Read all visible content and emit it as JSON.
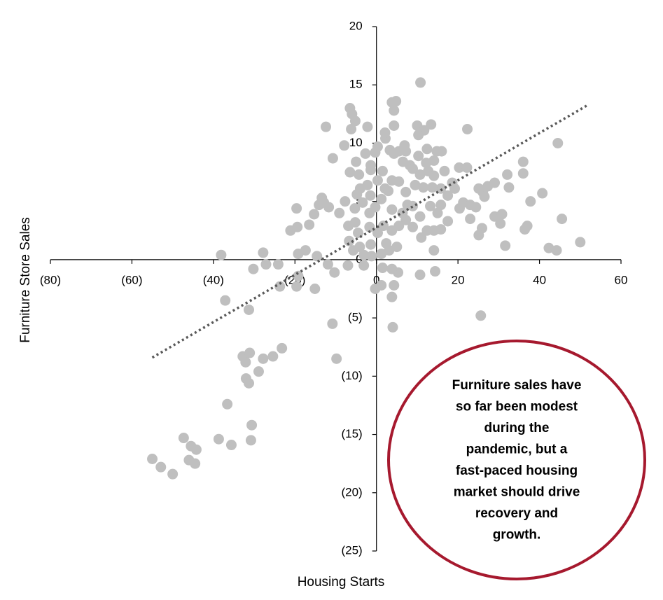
{
  "chart_data": {
    "type": "scatter",
    "x_label": "Housing Starts",
    "y_label": "Furniture Store Sales",
    "xlim": [
      -80,
      60
    ],
    "xticks": [
      {
        "value": -80,
        "label": "(80)"
      },
      {
        "value": -60,
        "label": "(60)"
      },
      {
        "value": -40,
        "label": "(40)"
      },
      {
        "value": -20,
        "label": "(20)"
      },
      0,
      20,
      40,
      60
    ],
    "ylim": [
      -25,
      20
    ],
    "yticks": [
      20,
      15,
      10,
      5,
      0,
      {
        "value": -5,
        "label": "(5)"
      },
      {
        "value": -10,
        "label": "(10)"
      },
      {
        "value": -15,
        "label": "(15)"
      },
      {
        "value": -20,
        "label": "(20)"
      },
      {
        "value": -25,
        "label": "(25)"
      }
    ],
    "x": [
      -55,
      -52.9,
      -50,
      -47.3,
      -45.5,
      -44.2,
      -46,
      -44.5,
      -38.7,
      -35.6,
      -30.8,
      -30.6,
      -36.6,
      -32,
      -31.3,
      -28.9,
      -32.8,
      -32.1,
      -31.1,
      -27.8,
      -25.4,
      -23.2,
      -9.8,
      -10.8,
      4,
      25.6,
      -37.1,
      -31.3,
      -38.1,
      -30.2,
      -27.8,
      -27.1,
      -24.1,
      -23.7,
      -19.6,
      -19.2,
      -15.1,
      -11.9,
      -10.3,
      -7,
      -0.3,
      1.2,
      3.8,
      4.3,
      5.3,
      10.7,
      14.4,
      1.5,
      -3.1,
      -19.6,
      -21.1,
      -19.4,
      -16.5,
      -17.4,
      -14.6,
      -19.2,
      -15.3,
      -14.1,
      -13.4,
      -12.9,
      -11.7,
      -12.4,
      -10.7,
      -7.9,
      -6.5,
      -6,
      -5.2,
      -6.2,
      -2.2,
      -9.1,
      -7.7,
      -6.9,
      -5.2,
      -4.5,
      -6.7,
      -5.7,
      -4.1,
      -1.4,
      -1.2,
      -3.1,
      1.2,
      3.1,
      2.4,
      5,
      -6.5,
      -5,
      -4.3,
      -2.2,
      -1.4,
      -1.5,
      -3.4,
      -4,
      -5.3,
      -1.7,
      -0.3,
      1.2,
      2.1,
      0.3,
      1.5,
      -0.3,
      0.3,
      2.2,
      2.1,
      3.8,
      4.8,
      4.3,
      4.3,
      3.3,
      4.3,
      5.5,
      6.9,
      7.2,
      6.5,
      8.2,
      10,
      10.8,
      11.7,
      10.3,
      13.4,
      12.4,
      14.8,
      16,
      14.1,
      12.2,
      10.3,
      8.9,
      10.7,
      12.7,
      14.1,
      16.7,
      18.6,
      20.3,
      22.2,
      22.3,
      19.2,
      20.4,
      21.3,
      23,
      24.4,
      23,
      25.9,
      25.1,
      25.1,
      26.1,
      27.3,
      29,
      26.5,
      32.1,
      32.5,
      29,
      30.8,
      30.4,
      31.6,
      36,
      36,
      37.8,
      40.7,
      36.4,
      37,
      44.5,
      45.5,
      42.3,
      44.2,
      50,
      3.8,
      14.1,
      11,
      12.4,
      14.1,
      15.8,
      17.5,
      8.9,
      7.2,
      5.5,
      3.8,
      10.7,
      13.2,
      15,
      15.8,
      17.5,
      15.8,
      13.7,
      11.5,
      9.5,
      7.2,
      5.5,
      3.8,
      2.9,
      7.6,
      6.4,
      8.9,
      3.8,
      1.7,
      0.3,
      -1.7,
      -4.8,
      -2.7,
      -1.4
    ],
    "series": [
      {
        "color": "#bfbfbf",
        "values": [
          -17.1,
          -17.8,
          -18.4,
          -15.3,
          -16,
          -16.3,
          -17.2,
          -17.5,
          -15.4,
          -15.9,
          -15.5,
          -14.2,
          -12.4,
          -10.2,
          -10.6,
          -9.6,
          -8.3,
          -8.8,
          -8,
          -8.5,
          -8.3,
          -7.6,
          -8.5,
          -5.5,
          -5.8,
          -4.8,
          -3.5,
          -4.3,
          0.4,
          -0.8,
          0.6,
          -0.4,
          -0.4,
          -2.3,
          -2.3,
          -1.4,
          -2.5,
          -0.4,
          -1.1,
          -0.5,
          -2.5,
          -2.2,
          -3.2,
          -2.2,
          -1.1,
          -1.3,
          -1,
          -0.7,
          -0.5,
          4.4,
          2.5,
          2.8,
          3,
          0.8,
          0.3,
          0.5,
          3.9,
          4.7,
          5.3,
          4.9,
          4.5,
          11.4,
          8.7,
          9.8,
          13,
          12.5,
          11.9,
          11.2,
          11.4,
          4,
          5,
          2.9,
          3.2,
          2.3,
          1.6,
          0.8,
          1.1,
          1.3,
          0.3,
          0.4,
          0.5,
          0.8,
          1.4,
          1.1,
          7.5,
          8.4,
          7.3,
          6.4,
          7.7,
          5.5,
          4.9,
          6.1,
          4.4,
          4,
          4.5,
          5.2,
          6.1,
          6.8,
          7.6,
          9.2,
          9.7,
          10.4,
          10.9,
          13.5,
          13.6,
          12.8,
          11.5,
          9.4,
          9.1,
          9.3,
          9.8,
          9.3,
          8.4,
          8.1,
          11.5,
          15.2,
          11.1,
          10.7,
          11.6,
          9.5,
          9.3,
          9.3,
          8.5,
          8.3,
          8.9,
          7.8,
          7.3,
          7.6,
          7.2,
          7.6,
          6.6,
          7.9,
          7.9,
          11.2,
          6.1,
          4.4,
          4.9,
          4.7,
          4.5,
          3.5,
          2.7,
          2.1,
          6.1,
          5.8,
          6.3,
          6.6,
          5.4,
          7.3,
          6.2,
          3.7,
          3.9,
          3.1,
          1.2,
          7.4,
          8.4,
          5,
          5.7,
          2.6,
          2.9,
          10,
          3.5,
          1,
          0.8,
          1.5,
          -0.8,
          0.8,
          1.9,
          2.5,
          2.5,
          2.6,
          3.3,
          2.8,
          3.4,
          2.9,
          2.5,
          3.7,
          4.6,
          4,
          4.7,
          5.5,
          6.1,
          6.2,
          6.2,
          6.4,
          5.8,
          6.7,
          6.8,
          5.9,
          4.7,
          4,
          4.6,
          4.3,
          2.9,
          2.3,
          2.8,
          5.6,
          9.1,
          8.1
        ]
      }
    ],
    "trendline": {
      "color": "#595959",
      "x": [
        -55,
        52
      ],
      "y": [
        -8.4,
        13.3
      ]
    },
    "annotation": {
      "lines": [
        "Furniture sales have",
        "so far been modest",
        "during the",
        "pandemic, but a",
        "fast-paced housing",
        "market should drive",
        "recovery and",
        "growth."
      ],
      "color": "#a6192e"
    }
  }
}
